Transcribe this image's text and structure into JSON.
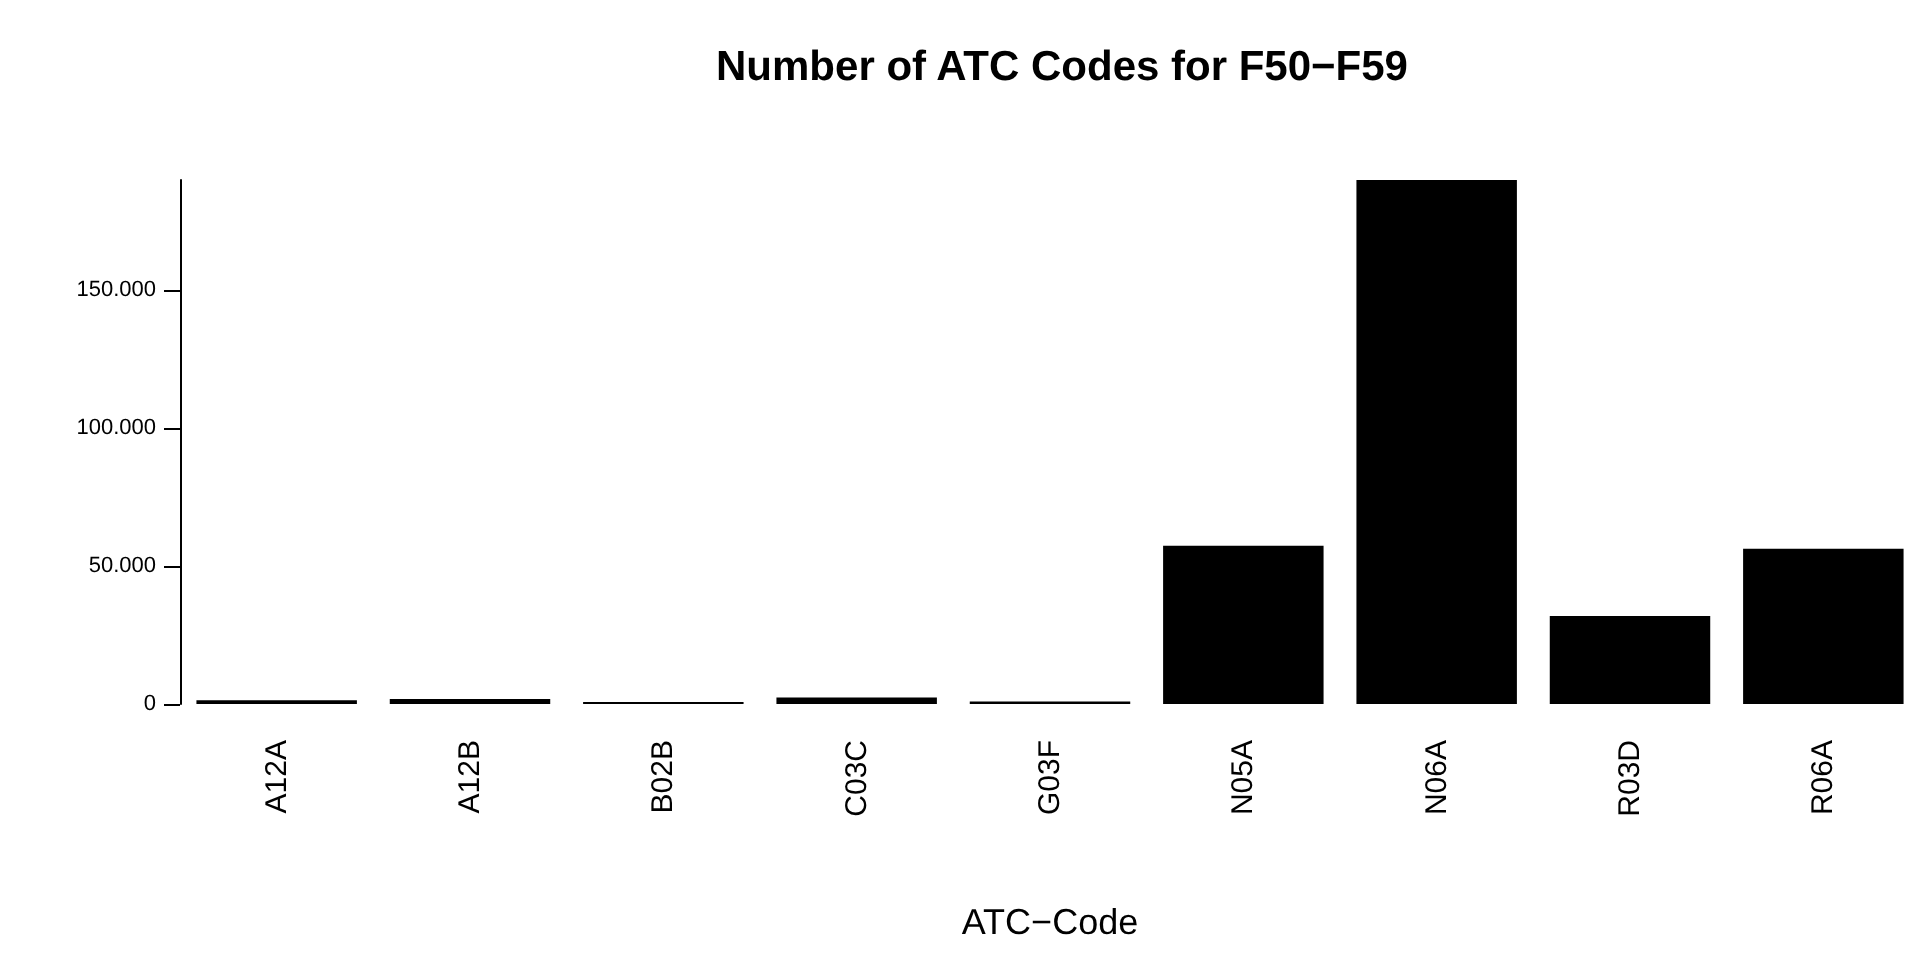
{
  "chart_data": {
    "type": "bar",
    "title": "Number of ATC Codes for F50−F59",
    "xlabel": "ATC−Code",
    "categories": [
      "A12A",
      "A12B",
      "B02B",
      "C03C",
      "G03F",
      "N05A",
      "N06A",
      "R03D",
      "R06A"
    ],
    "values": [
      1400,
      1800,
      700,
      2400,
      900,
      57400,
      190000,
      31900,
      56300
    ],
    "color": "#000000",
    "ylim": [
      0,
      190000
    ],
    "yticks": [
      {
        "value": 0,
        "label": "0"
      },
      {
        "value": 50000,
        "label": "50.000"
      },
      {
        "value": 100000,
        "label": "100.000"
      },
      {
        "value": 150000,
        "label": "150.000"
      }
    ],
    "grid": false
  }
}
